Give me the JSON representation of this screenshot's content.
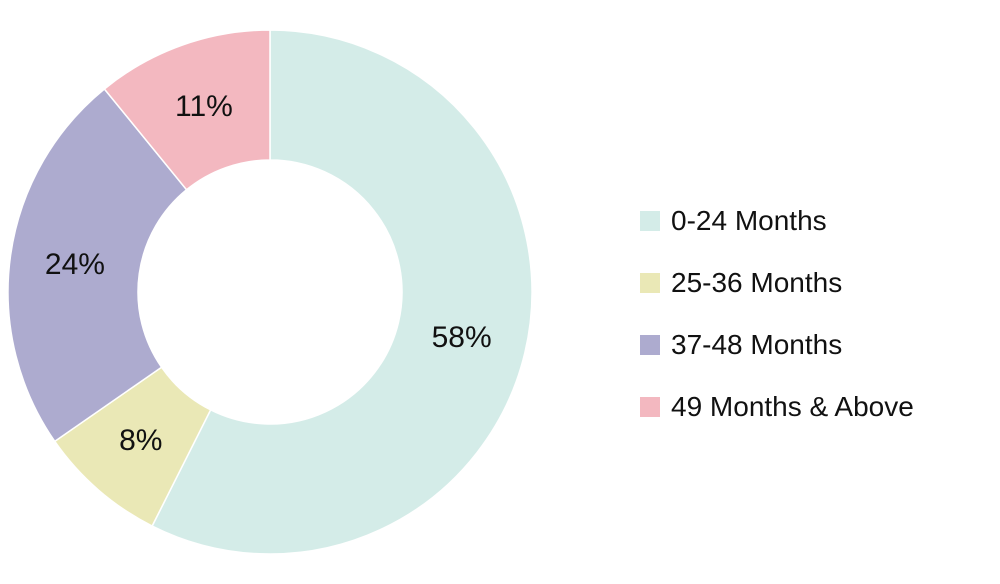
{
  "chart_data": {
    "type": "pie",
    "donut": true,
    "legend_position": "right",
    "categories": [
      "0-24 Months",
      "25-36 Months",
      "37-48 Months",
      "49 Months & Above"
    ],
    "values": [
      58,
      8,
      24,
      11
    ],
    "data_labels": [
      "58%",
      "8%",
      "24%",
      "11%"
    ],
    "colors": [
      "#d4ece8",
      "#eae8b6",
      "#adabcf",
      "#f3b8c0"
    ]
  },
  "legend": {
    "items": [
      {
        "label": "0-24 Months",
        "color": "#d4ece8"
      },
      {
        "label": "25-36 Months",
        "color": "#eae8b6"
      },
      {
        "label": "37-48 Months",
        "color": "#adabcf"
      },
      {
        "label": "49 Months & Above",
        "color": "#f3b8c0"
      }
    ]
  }
}
